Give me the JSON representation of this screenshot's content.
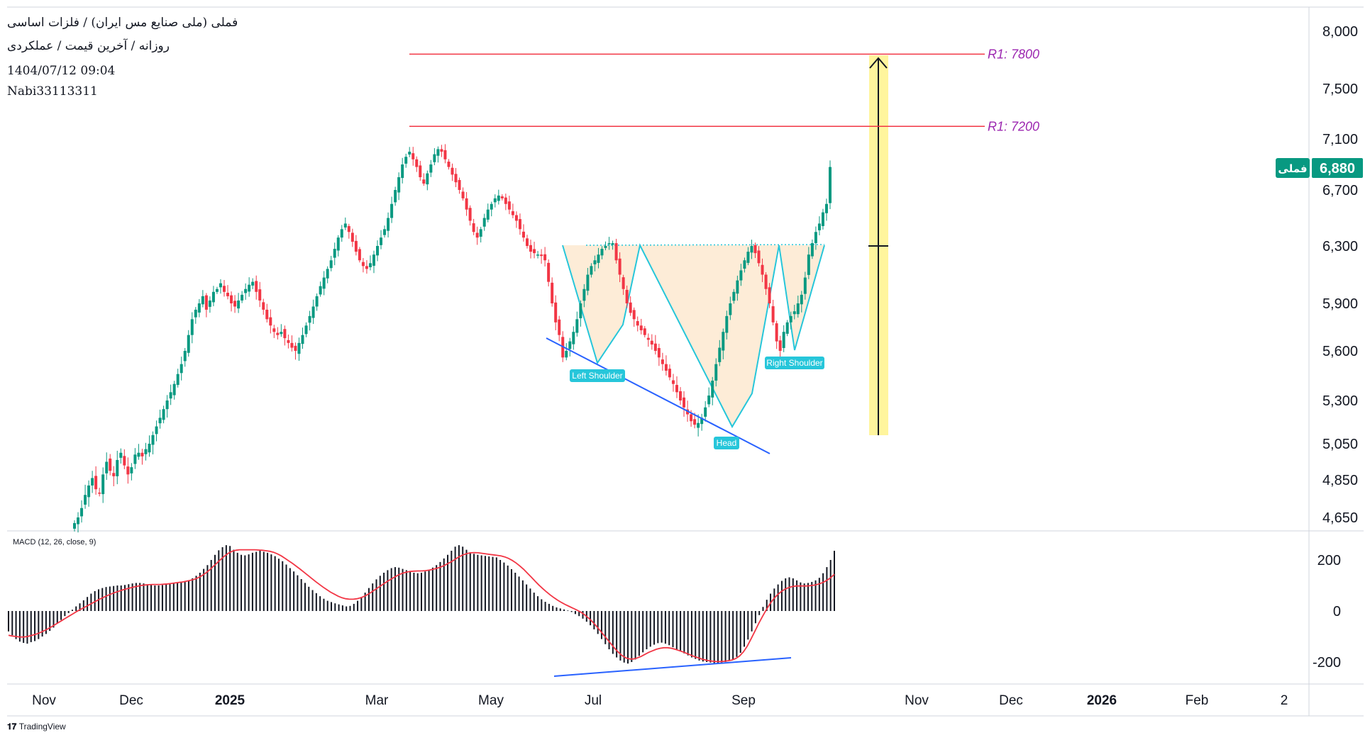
{
  "header": {
    "title": "فملی (ملی صنایع مس ایران) / فلزات اساسی",
    "subtitle": "روزانه / آخرین قیمت / عملکردی",
    "datetime": "1404/07/12 09:04",
    "author": "Nabi33113311"
  },
  "macd_label": "MACD (12, 26, close, 9)",
  "price_tag": {
    "symbol": "فملی",
    "value": "6,880",
    "color": "#089981"
  },
  "footer": {
    "brand": "TradingView"
  },
  "colors": {
    "up": "#089981",
    "down": "#f23645",
    "level": "#f23645",
    "level_text": "#9c27b0",
    "pattern_line": "#26c6da",
    "pattern_fill": "#fde9d0",
    "trend": "#2962ff",
    "target_fill": "#fff59d"
  },
  "chart_data": {
    "type": "candlestick",
    "price_axis_ticks": [
      "8,000",
      "7,500",
      "7,100",
      "6,700",
      "6,300",
      "5,900",
      "5,600",
      "5,300",
      "5,050",
      "4,850",
      "4,650"
    ],
    "macd_axis_ticks": [
      "200",
      "0",
      "-200"
    ],
    "time_axis_ticks": [
      {
        "label": "Nov",
        "bold": false
      },
      {
        "label": "Dec",
        "bold": false
      },
      {
        "label": "2025",
        "bold": true
      },
      {
        "label": "Mar",
        "bold": false
      },
      {
        "label": "May",
        "bold": false
      },
      {
        "label": "Jul",
        "bold": false
      },
      {
        "label": "Sep",
        "bold": false
      },
      {
        "label": "Nov",
        "bold": false
      },
      {
        "label": "Dec",
        "bold": false
      },
      {
        "label": "2026",
        "bold": true
      },
      {
        "label": "Feb",
        "bold": false
      },
      {
        "label": "2",
        "bold": false
      }
    ],
    "last_price": 6880,
    "levels": [
      {
        "label": "R1: 7800",
        "value": 7800
      },
      {
        "label": "R1: 7200",
        "value": 7200
      }
    ],
    "neckline": 6320,
    "pattern_labels": [
      {
        "label": "Left Shoulder",
        "price": 5500
      },
      {
        "label": "Head",
        "price": 5130
      },
      {
        "label": "Right Shoulder",
        "price": 5600
      }
    ],
    "closes": [
      4620,
      4650,
      4700,
      4770,
      4820,
      4860,
      4800,
      4780,
      4880,
      4950,
      4900,
      4870,
      4960,
      5000,
      4930,
      4880,
      4920,
      4990,
      5000,
      4980,
      5020,
      5050,
      5100,
      5150,
      5200,
      5250,
      5300,
      5350,
      5400,
      5460,
      5520,
      5600,
      5700,
      5800,
      5860,
      5900,
      5950,
      5860,
      5920,
      5980,
      6000,
      6040,
      5980,
      5950,
      5900,
      5880,
      5920,
      5960,
      6000,
      6030,
      6050,
      5980,
      5920,
      5860,
      5800,
      5760,
      5720,
      5700,
      5720,
      5680,
      5650,
      5620,
      5600,
      5650,
      5700,
      5760,
      5820,
      5880,
      5950,
      6020,
      6080,
      6140,
      6200,
      6280,
      6360,
      6420,
      6460,
      6400,
      6330,
      6260,
      6200,
      6160,
      6140,
      6180,
      6240,
      6300,
      6360,
      6420,
      6500,
      6600,
      6700,
      6800,
      6900,
      6960,
      7000,
      6940,
      6880,
      6800,
      6750,
      6830,
      6900,
      6980,
      7020,
      7000,
      6940,
      6880,
      6820,
      6760,
      6700,
      6640,
      6560,
      6480,
      6400,
      6360,
      6420,
      6500,
      6560,
      6600,
      6640,
      6660,
      6640,
      6600,
      6560,
      6520,
      6480,
      6420,
      6360,
      6300,
      6260,
      6250,
      6240,
      6230,
      6200,
      6050,
      5900,
      5780,
      5700,
      5560,
      5600,
      5660,
      5720,
      5800,
      5900,
      6000,
      6100,
      6160,
      6200,
      6240,
      6280,
      6300,
      6320,
      6320,
      6200,
      6100,
      6000,
      5900,
      5840,
      5800,
      5760,
      5730,
      5700,
      5670,
      5640,
      5600,
      5560,
      5520,
      5480,
      5440,
      5400,
      5350,
      5300,
      5260,
      5220,
      5180,
      5160,
      5170,
      5200,
      5260,
      5330,
      5420,
      5520,
      5620,
      5720,
      5820,
      5900,
      5980,
      6060,
      6130,
      6200,
      6260,
      6300,
      6250,
      6180,
      6100,
      6000,
      5900,
      5780,
      5660,
      5600,
      5720,
      5780,
      5820,
      5850,
      5900,
      5960,
      6080,
      6240,
      6320,
      6400,
      6460,
      6540,
      6600,
      6880
    ],
    "macd_hist": [
      -80,
      -95,
      -110,
      -120,
      -125,
      -128,
      -122,
      -118,
      -110,
      -100,
      -90,
      -78,
      -65,
      -50,
      -35,
      -20,
      -8,
      5,
      18,
      30,
      42,
      55,
      68,
      78,
      85,
      90,
      94,
      96,
      98,
      100,
      100,
      102,
      105,
      108,
      110,
      110,
      108,
      105,
      103,
      100,
      100,
      102,
      104,
      106,
      108,
      110,
      112,
      116,
      120,
      128,
      138,
      150,
      165,
      180,
      200,
      220,
      238,
      250,
      258,
      255,
      240,
      228,
      220,
      218,
      222,
      228,
      232,
      236,
      232,
      228,
      222,
      215,
      205,
      195,
      182,
      168,
      155,
      140,
      125,
      110,
      95,
      82,
      70,
      58,
      48,
      40,
      35,
      30,
      26,
      22,
      18,
      20,
      28,
      40,
      55,
      72,
      90,
      108,
      124,
      138,
      150,
      160,
      168,
      172,
      170,
      165,
      160,
      155,
      150,
      148,
      150,
      155,
      162,
      170,
      180,
      192,
      206,
      220,
      236,
      252,
      258,
      252,
      240,
      230,
      224,
      220,
      218,
      216,
      214,
      212,
      210,
      200,
      190,
      178,
      164,
      150,
      135,
      120,
      104,
      88,
      72,
      58,
      46,
      36,
      28,
      20,
      14,
      10,
      6,
      2,
      -4,
      -12,
      -20,
      -30,
      -42,
      -56,
      -72,
      -90,
      -110,
      -130,
      -150,
      -168,
      -182,
      -194,
      -202,
      -206,
      -200,
      -190,
      -176,
      -162,
      -150,
      -140,
      -132,
      -126,
      -124,
      -128,
      -134,
      -142,
      -150,
      -158,
      -166,
      -174,
      -182,
      -188,
      -194,
      -198,
      -200,
      -202,
      -204,
      -204,
      -202,
      -200,
      -196,
      -190,
      -180,
      -164,
      -140,
      -112,
      -80,
      -48,
      -16,
      16,
      44,
      68,
      88,
      104,
      118,
      128,
      132,
      128,
      120,
      112,
      108,
      110,
      114,
      120,
      130,
      148,
      172,
      200,
      236
    ],
    "macd_signal": [
      -95,
      -98,
      -100,
      -102,
      -102,
      -100,
      -96,
      -92,
      -87,
      -80,
      -73,
      -65,
      -56,
      -47,
      -38,
      -29,
      -20,
      -11,
      -2,
      6,
      14,
      22,
      30,
      38,
      46,
      53,
      60,
      66,
      72,
      77,
      82,
      86,
      90,
      94,
      97,
      100,
      102,
      103,
      104,
      104,
      104,
      105,
      106,
      108,
      110,
      112,
      114,
      117,
      120,
      124,
      130,
      138,
      148,
      160,
      174,
      188,
      202,
      215,
      226,
      234,
      238,
      240,
      240,
      240,
      240,
      240,
      239,
      238,
      236,
      234,
      230,
      224,
      216,
      206,
      196,
      186,
      175,
      164,
      152,
      140,
      128,
      116,
      105,
      94,
      84,
      74,
      66,
      58,
      52,
      48,
      46,
      46,
      48,
      52,
      58,
      66,
      76,
      86,
      96,
      106,
      116,
      125,
      134,
      142,
      148,
      152,
      155,
      156,
      157,
      157,
      158,
      160,
      163,
      167,
      172,
      178,
      186,
      194,
      204,
      213,
      220,
      225,
      228,
      229,
      228,
      226,
      224,
      222,
      220,
      218,
      216,
      212,
      206,
      198,
      188,
      176,
      163,
      148,
      133,
      117,
      102,
      88,
      75,
      63,
      52,
      42,
      33,
      25,
      18,
      11,
      4,
      -4,
      -14,
      -26,
      -40,
      -56,
      -74,
      -92,
      -110,
      -128,
      -146,
      -162,
      -175,
      -184,
      -188,
      -188,
      -184,
      -178,
      -170,
      -162,
      -156,
      -150,
      -146,
      -144,
      -144,
      -146,
      -150,
      -155,
      -160,
      -166,
      -172,
      -178,
      -183,
      -188,
      -192,
      -195,
      -197,
      -198,
      -198,
      -197,
      -195,
      -192,
      -186,
      -176,
      -160,
      -138,
      -110,
      -80,
      -50,
      -22,
      4,
      28,
      48,
      64,
      76,
      86,
      92,
      96,
      98,
      98,
      98,
      98,
      100,
      102,
      106,
      112,
      120,
      130,
      144
    ]
  }
}
